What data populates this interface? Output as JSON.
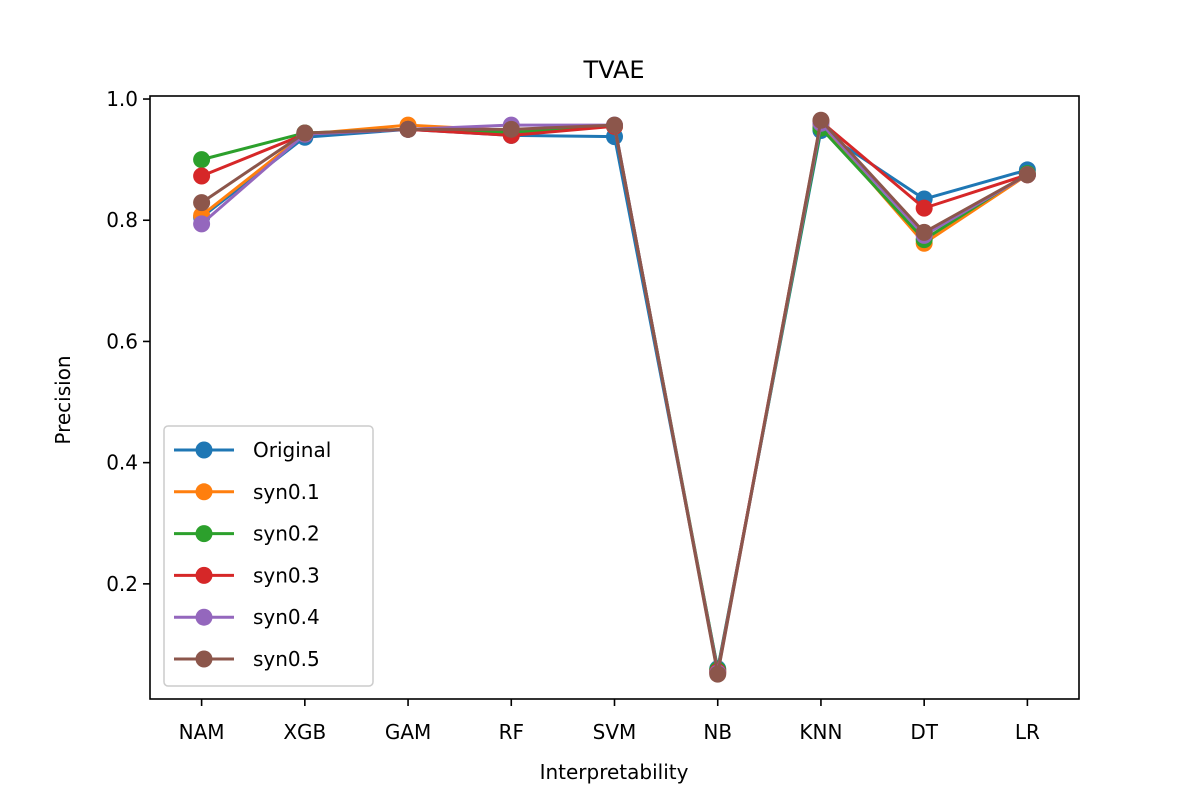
{
  "chart_data": {
    "type": "line",
    "title": "TVAE",
    "xlabel": "Interpretability",
    "ylabel": "Precision",
    "categories": [
      "NAM",
      "XGB",
      "GAM",
      "RF",
      "SVM",
      "NB",
      "KNN",
      "DT",
      "LR"
    ],
    "ylim": [
      0.01,
      1.005
    ],
    "yticks": [
      "0.2",
      "0.4",
      "0.6",
      "0.8",
      "1.0"
    ],
    "grid": false,
    "legend_position": "lower-left",
    "series": [
      {
        "name": "Original",
        "color": "#1f77b4",
        "values": [
          0.805,
          0.937,
          0.95,
          0.94,
          0.938,
          0.06,
          0.948,
          0.835,
          0.883
        ]
      },
      {
        "name": "syn0.1",
        "color": "#ff7f0e",
        "values": [
          0.808,
          0.942,
          0.957,
          0.948,
          0.955,
          0.055,
          0.958,
          0.762,
          0.875
        ]
      },
      {
        "name": "syn0.2",
        "color": "#2ca02c",
        "values": [
          0.9,
          0.944,
          0.95,
          0.945,
          0.955,
          0.058,
          0.952,
          0.768,
          0.877
        ]
      },
      {
        "name": "syn0.3",
        "color": "#d62728",
        "values": [
          0.873,
          0.942,
          0.95,
          0.94,
          0.955,
          0.055,
          0.963,
          0.82,
          0.875
        ]
      },
      {
        "name": "syn0.4",
        "color": "#9467bd",
        "values": [
          0.794,
          0.942,
          0.95,
          0.957,
          0.957,
          0.053,
          0.96,
          0.775,
          0.875
        ]
      },
      {
        "name": "syn0.5",
        "color": "#8c564b",
        "values": [
          0.829,
          0.944,
          0.95,
          0.95,
          0.957,
          0.051,
          0.965,
          0.78,
          0.875
        ]
      }
    ]
  }
}
